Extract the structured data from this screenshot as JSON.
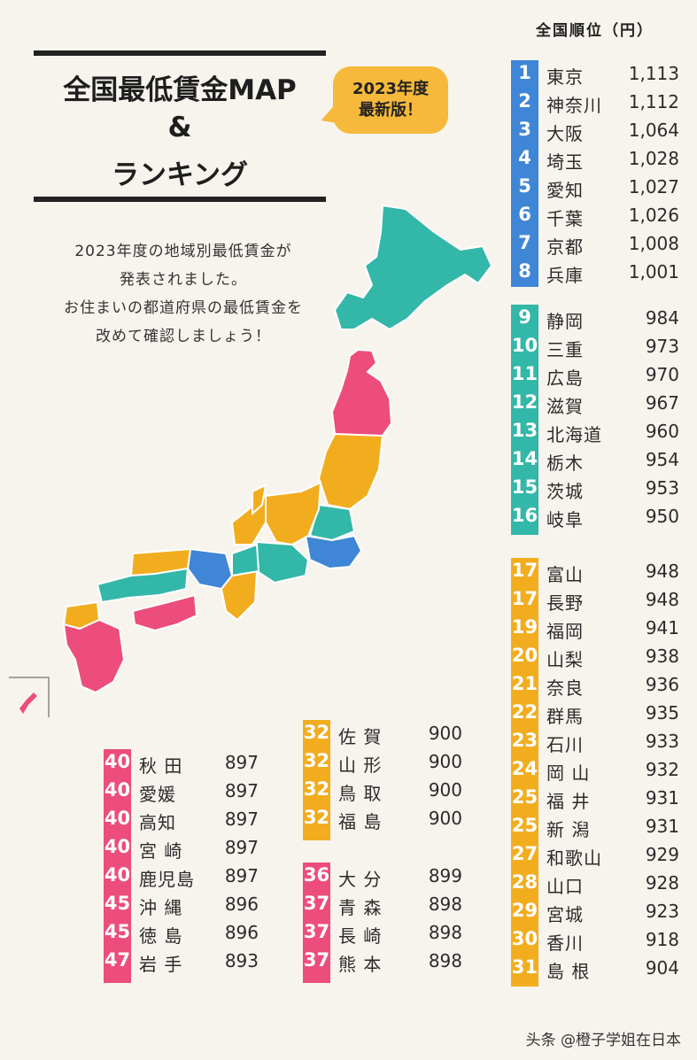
{
  "title": {
    "line1": "全国最低賃金MAP",
    "line2": "&",
    "line3": "ランキング"
  },
  "badge": {
    "line1": "2023年度",
    "line2": "最新版！"
  },
  "description": [
    "2023年度の地域別最低賃金が",
    "発表されました。",
    "お住まいの都道府県の最低賃金を",
    "改めて確認しましょう！"
  ],
  "ranking_header": "全国順位（円）",
  "colors": {
    "blue": "#3f86d6",
    "teal": "#33b7a8",
    "orange": "#f2ad1f",
    "pink": "#ec4d7d"
  },
  "groups": {
    "blue": [
      {
        "rank": "1",
        "name": "東京",
        "value": "1,113"
      },
      {
        "rank": "2",
        "name": "神奈川",
        "value": "1,112"
      },
      {
        "rank": "3",
        "name": "大阪",
        "value": "1,064"
      },
      {
        "rank": "4",
        "name": "埼玉",
        "value": "1,028"
      },
      {
        "rank": "5",
        "name": "愛知",
        "value": "1,027"
      },
      {
        "rank": "6",
        "name": "千葉",
        "value": "1,026"
      },
      {
        "rank": "7",
        "name": "京都",
        "value": "1,008"
      },
      {
        "rank": "8",
        "name": "兵庫",
        "value": "1,001"
      }
    ],
    "teal": [
      {
        "rank": "9",
        "name": "静岡",
        "value": "984"
      },
      {
        "rank": "10",
        "name": "三重",
        "value": "973"
      },
      {
        "rank": "11",
        "name": "広島",
        "value": "970"
      },
      {
        "rank": "12",
        "name": "滋賀",
        "value": "967"
      },
      {
        "rank": "13",
        "name": "北海道",
        "value": "960"
      },
      {
        "rank": "14",
        "name": "栃木",
        "value": "954"
      },
      {
        "rank": "15",
        "name": "茨城",
        "value": "953"
      },
      {
        "rank": "16",
        "name": "岐阜",
        "value": "950"
      }
    ],
    "orange_right": [
      {
        "rank": "17",
        "name": "富山",
        "value": "948"
      },
      {
        "rank": "17",
        "name": "長野",
        "value": "948"
      },
      {
        "rank": "19",
        "name": "福岡",
        "value": "941"
      },
      {
        "rank": "20",
        "name": "山梨",
        "value": "938"
      },
      {
        "rank": "21",
        "name": "奈良",
        "value": "936"
      },
      {
        "rank": "22",
        "name": "群馬",
        "value": "935"
      },
      {
        "rank": "23",
        "name": "石川",
        "value": "933"
      },
      {
        "rank": "24",
        "name": "岡 山",
        "value": "932"
      },
      {
        "rank": "25",
        "name": "福 井",
        "value": "931"
      },
      {
        "rank": "25",
        "name": "新 潟",
        "value": "931"
      },
      {
        "rank": "27",
        "name": "和歌山",
        "value": "929"
      },
      {
        "rank": "28",
        "name": "山口",
        "value": "928"
      },
      {
        "rank": "29",
        "name": "宮城",
        "value": "923"
      },
      {
        "rank": "30",
        "name": "香川",
        "value": "918"
      },
      {
        "rank": "31",
        "name": "島 根",
        "value": "904"
      }
    ],
    "orange_mid": [
      {
        "rank": "32",
        "name": "佐 賀",
        "value": "900"
      },
      {
        "rank": "32",
        "name": "山 形",
        "value": "900"
      },
      {
        "rank": "32",
        "name": "鳥 取",
        "value": "900"
      },
      {
        "rank": "32",
        "name": "福 島",
        "value": "900"
      }
    ],
    "pink_mid": [
      {
        "rank": "36",
        "name": "大 分",
        "value": "899"
      },
      {
        "rank": "37",
        "name": "青 森",
        "value": "898"
      },
      {
        "rank": "37",
        "name": "長 崎",
        "value": "898"
      },
      {
        "rank": "37",
        "name": "熊 本",
        "value": "898"
      }
    ],
    "pink_left": [
      {
        "rank": "40",
        "name": "秋 田",
        "value": "897"
      },
      {
        "rank": "40",
        "name": "愛媛",
        "value": "897"
      },
      {
        "rank": "40",
        "name": "高知",
        "value": "897"
      },
      {
        "rank": "40",
        "name": "宮 崎",
        "value": "897"
      },
      {
        "rank": "40",
        "name": "鹿児島",
        "value": "897"
      },
      {
        "rank": "45",
        "name": "沖 縄",
        "value": "896"
      },
      {
        "rank": "45",
        "name": "徳 島",
        "value": "896"
      },
      {
        "rank": "47",
        "name": "岩 手",
        "value": "893"
      }
    ]
  },
  "footer": "头条 @橙子学姐在日本"
}
